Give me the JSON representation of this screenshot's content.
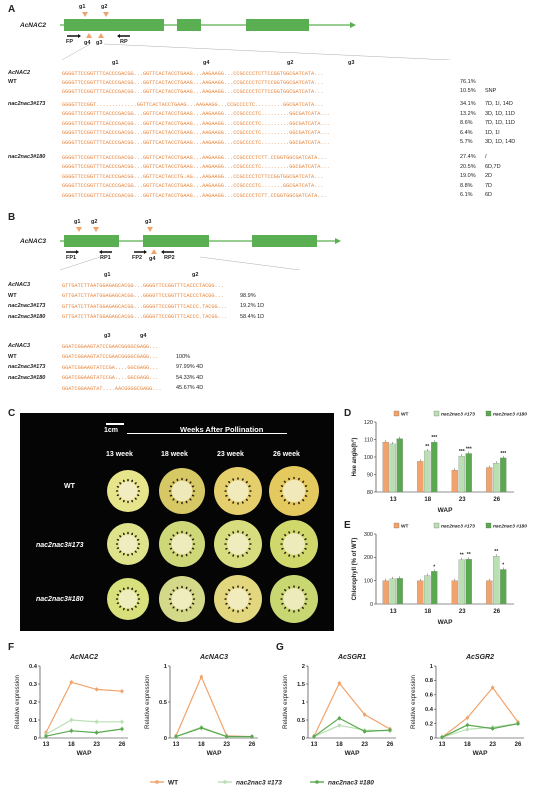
{
  "panels": {
    "A": {
      "letter": "A",
      "gene": "AcNAC2",
      "guides": [
        "g1",
        "g2",
        "g4",
        "g3"
      ],
      "primers": [
        "FP",
        "RP"
      ],
      "header_guides": [
        "g1",
        "g4",
        "g2",
        "g3"
      ],
      "rows": [
        {
          "label": "AcNAC2",
          "seq": "GGGGTTCCGGTTTCACCCGACGG...GGTTCACTACCTGAAG...AAGAAGG...CCGCCCCTCTTCCGGTGGCGATCATA...",
          "pct": "",
          "note": ""
        },
        {
          "label": "WT",
          "seq": "GGGGTTCCGGTTTCACCCGACGG...GGTTCACTACCTGAAG...AAGAAGG...CCGCCCCTCTTCCGGTGGCGATCATA...",
          "pct": "76.1%",
          "note": ""
        },
        {
          "label": "",
          "seq": "GGGGTTCCGGTTTCACCCGACGG...GGTTCACTACCTGAAG...AAGAAGG...CCGCCCCTCTTCCGGTGGCGATCATA...",
          "pct": "10.5%",
          "note": "SNP"
        },
        {
          "label": "nac2nac3#173",
          "seq": "GGGGTTCCGGT.............GGTTCACTACCTGAAG...AAGAAGG...CCGCCCCTC.........GGCGATCATA...",
          "pct": "34.1%",
          "note": "7D, 1I, 14D"
        },
        {
          "label": "",
          "seq": "GGGGTTCCGGTTTCACCCGACGG...GGTTCACTACCTGAAG...AAGAAGG...CCGCCCCTC.........GGCGATCATA...",
          "pct": "13.2%",
          "note": "3D, 1D, 11D"
        },
        {
          "label": "",
          "seq": "GGGGTTCCGGTTTCACCCGACGG...GGTTCACTACCTGAAG...AAGAAGG...CCGCCCCTC.........GGCGATCATA...",
          "pct": "8.6%",
          "note": "7D, 1D, 11D"
        },
        {
          "label": "",
          "seq": "GGGGTTCCGGTTTCACCCGACGG...GGTTCACTACCTGAAG...AAGAAGG...CCGCCCCTC.........GGCGATCATA...",
          "pct": "6.4%",
          "note": "1D, 1I"
        },
        {
          "label": "",
          "seq": "GGGGTTCCGGTTTCACCCGACGG...GGTTCACTACCTGAAG...AAGAAGG...CCGCCCCTC.........GGCGATCATA...",
          "pct": "5.7%",
          "note": "3D, 1D, 14D"
        },
        {
          "label": "nac2nac3#180",
          "seq": "GGGGTTCCGGTTTCACCCGACGG...GGTTCACTACCTGAAG...AAGAAGG...CCGCCCCTCTT.CCGGTGGCGATCATA...",
          "pct": "27.4%",
          "note": "/"
        },
        {
          "label": "",
          "seq": "GGGGTTCCGGTTTCACCCGACGG...GGTTCACTACCTGAAG...AAGAAGG...CCGCCCCTC.........GGCGATCATA...",
          "pct": "20.5%",
          "note": "6D,7D"
        },
        {
          "label": "",
          "seq": "GGGGTTCCGGTTTCACCCGACGG...GGTTCACTACCTG.AG...AAGAAGG...CCGCCCCTCTTCCGGTGGCGATCATA...",
          "pct": "19.0%",
          "note": "2D"
        },
        {
          "label": "",
          "seq": "GGGGTTCCGGTTTCACCCGACGG...GGTTCACTACCTGAAG...AAGAAGG...CCGCCCCTC.......GGCGATCATA...",
          "pct": "8.8%",
          "note": "7D"
        },
        {
          "label": "",
          "seq": "GGGGTTCCGGTTTCACCCGACGG...GGTTCACTACCTGAAG...AAGAAGG...CCGCCCCTCTT.CCGGTGGCGATCATA...",
          "pct": "6.1%",
          "note": "6D"
        }
      ]
    },
    "B": {
      "letter": "B",
      "gene": "AcNAC3",
      "guides": [
        "g1",
        "g2",
        "g3",
        "g4"
      ],
      "primers": [
        "FP1",
        "RP1",
        "FP2",
        "RP2"
      ],
      "header_guides_1": [
        "g1",
        "g2"
      ],
      "header_guides_2": [
        "g3",
        "g4"
      ],
      "rows1": [
        {
          "label": "AcNAC3",
          "seq": "GTTGATCTTAATGGAGAGCACGG...GGGGTTCCGGTTTCACCCTACGG...",
          "pct": ""
        },
        {
          "label": "WT",
          "seq": "GTTGATCTTAATGGAGAGCACGG...GGGGTTCCGGTTTCACCCTACGG...",
          "pct": "98.9%"
        },
        {
          "label": "nac2nac3#173",
          "seq": "GTTGATCTTAATGGAGAGCACGG...GGGGTTCCGGTTTCACCC.TACGG...",
          "pct": "19.2% 1D"
        },
        {
          "label": "nac2nac3#180",
          "seq": "GTTGATCTTAATGGAGAGCACGG...GGGGTTCCGGTTTCACCC.TACGG...",
          "pct": "58.4% 1D"
        }
      ],
      "rows2": [
        {
          "label": "AcNAC3",
          "seq": "GGATCGGAAGTATCCGAACGGGGCGAGG...",
          "pct": ""
        },
        {
          "label": "WT",
          "seq": "GGATCGGAAGTATCCGAACGGGGCGAGG...",
          "pct": "100%"
        },
        {
          "label": "nac2nac3#173",
          "seq": "GGATCGGAAGTATCCGA....GGCGAGG...",
          "pct": "97.99% 4D"
        },
        {
          "label": "nac2nac3#180",
          "seq": "GGATCGGAAGTATCCGA....GGCGAGG...",
          "pct": "54.33% 4D"
        },
        {
          "label": "",
          "seq": "GGATCGGAAGTAT....AACGGGGCGAGG...",
          "pct": "45.67% 4D"
        }
      ]
    },
    "C": {
      "letter": "C",
      "scale": "1cm",
      "title": "Weeks After Pollination",
      "columns": [
        "13 week",
        "18 week",
        "23 week",
        "26 week"
      ],
      "rows": [
        "WT",
        "nac2nac3#173",
        "nac2nac3#180"
      ]
    },
    "D": {
      "letter": "D"
    },
    "E": {
      "letter": "E"
    },
    "F": {
      "letter": "F"
    },
    "G": {
      "letter": "G"
    }
  },
  "colors": {
    "wt": "#f2a36b",
    "l173": "#b9dfb3",
    "l180": "#5aa84f",
    "gene": "#5aaf52",
    "orange": "#e8843a",
    "green_seq": "#3e9a3a",
    "gray": "#9a9a9a"
  },
  "legend": {
    "wt": "WT",
    "l173": "nac2nac3 #173",
    "l180": "nac2nac3 #180"
  },
  "chart_data": [
    {
      "id": "D",
      "type": "bar",
      "title": "",
      "xlabel": "WAP",
      "ylabel": "Hue angle(h°)",
      "categories": [
        "13",
        "18",
        "23",
        "26"
      ],
      "ylim": [
        80,
        120
      ],
      "yticks": [
        80,
        90,
        100,
        110,
        120
      ],
      "series": [
        {
          "name": "WT",
          "values": [
            108.5,
            97.5,
            92.5,
            94.0
          ]
        },
        {
          "name": "nac2nac3 #173",
          "values": [
            107.5,
            103.5,
            100.5,
            96.5
          ]
        },
        {
          "name": "nac2nac3 #180",
          "values": [
            110.5,
            108.5,
            102.0,
            99.5
          ]
        }
      ],
      "annotations": [
        [
          "",
          "",
          ""
        ],
        [
          "",
          "**",
          "***"
        ],
        [
          "",
          "***",
          "***"
        ],
        [
          "",
          "",
          "***"
        ]
      ]
    },
    {
      "id": "E",
      "type": "bar",
      "title": "",
      "xlabel": "WAP",
      "ylabel": "Chlorophyll (% of WT)",
      "categories": [
        "13",
        "18",
        "23",
        "26"
      ],
      "ylim": [
        0,
        300
      ],
      "yticks": [
        0,
        100,
        200,
        300
      ],
      "series": [
        {
          "name": "WT",
          "values": [
            100,
            100,
            100,
            100
          ]
        },
        {
          "name": "nac2nac3 #173",
          "values": [
            108,
            122,
            190,
            205
          ]
        },
        {
          "name": "nac2nac3 #180",
          "values": [
            110,
            140,
            192,
            148
          ]
        }
      ],
      "annotations": [
        [
          "",
          "",
          ""
        ],
        [
          "",
          "",
          "*"
        ],
        [
          "",
          "**",
          "**"
        ],
        [
          "",
          "**",
          "*"
        ]
      ]
    },
    {
      "id": "F1",
      "type": "line",
      "title": "AcNAC2",
      "xlabel": "WAP",
      "ylabel": "Relative expression",
      "x": [
        "13",
        "18",
        "23",
        "26"
      ],
      "ylim": [
        0,
        0.4
      ],
      "yticks": [
        0,
        0.1,
        0.2,
        0.3,
        0.4
      ],
      "series": [
        {
          "name": "WT",
          "values": [
            0.03,
            0.31,
            0.27,
            0.26
          ]
        },
        {
          "name": "nac2nac3 #173",
          "values": [
            0.02,
            0.1,
            0.09,
            0.09
          ]
        },
        {
          "name": "nac2nac3 #180",
          "values": [
            0.01,
            0.04,
            0.03,
            0.05
          ]
        }
      ]
    },
    {
      "id": "F2",
      "type": "line",
      "title": "AcNAC3",
      "xlabel": "WAP",
      "ylabel": "Relative expression",
      "x": [
        "13",
        "18",
        "23",
        "26"
      ],
      "ylim": [
        0,
        1.0
      ],
      "yticks": [
        0,
        0.5,
        1.0
      ],
      "series": [
        {
          "name": "WT",
          "values": [
            0.03,
            0.85,
            0.03,
            0.02
          ]
        },
        {
          "name": "nac2nac3 #173",
          "values": [
            0.02,
            0.15,
            0.02,
            0.02
          ]
        },
        {
          "name": "nac2nac3 #180",
          "values": [
            0.02,
            0.14,
            0.02,
            0.02
          ]
        }
      ]
    },
    {
      "id": "G1",
      "type": "line",
      "title": "AcSGR1",
      "xlabel": "WAP",
      "ylabel": "Relative expression",
      "x": [
        "13",
        "18",
        "23",
        "26"
      ],
      "ylim": [
        0,
        2.0
      ],
      "yticks": [
        0,
        0.5,
        1.0,
        1.5,
        2.0
      ],
      "series": [
        {
          "name": "WT",
          "values": [
            0.05,
            1.52,
            0.65,
            0.25
          ]
        },
        {
          "name": "nac2nac3 #173",
          "values": [
            0.04,
            0.35,
            0.22,
            0.2
          ]
        },
        {
          "name": "nac2nac3 #180",
          "values": [
            0.04,
            0.55,
            0.18,
            0.22
          ]
        }
      ]
    },
    {
      "id": "G2",
      "type": "line",
      "title": "AcSGR2",
      "xlabel": "WAP",
      "ylabel": "Relative expression",
      "x": [
        "13",
        "18",
        "23",
        "26"
      ],
      "ylim": [
        0,
        1.0
      ],
      "yticks": [
        0,
        0.2,
        0.4,
        0.6,
        0.8,
        1.0
      ],
      "series": [
        {
          "name": "WT",
          "values": [
            0.01,
            0.28,
            0.7,
            0.22
          ]
        },
        {
          "name": "nac2nac3 #173",
          "values": [
            0.01,
            0.12,
            0.15,
            0.2
          ]
        },
        {
          "name": "nac2nac3 #180",
          "values": [
            0.01,
            0.18,
            0.13,
            0.2
          ]
        }
      ]
    }
  ]
}
